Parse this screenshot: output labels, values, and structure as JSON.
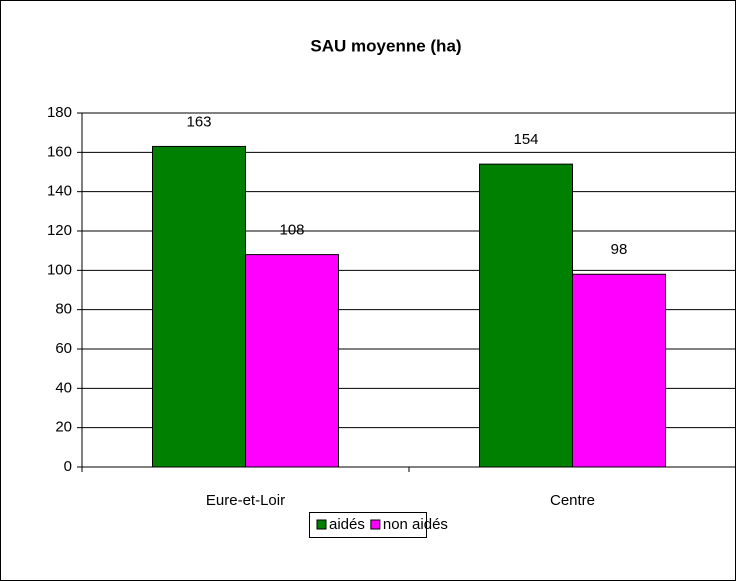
{
  "chart_data": {
    "type": "bar",
    "title": "SAU moyenne (ha)",
    "categories": [
      "Eure-et-Loir",
      "Centre"
    ],
    "series": [
      {
        "name": "aidés",
        "color": "#008000",
        "values": [
          163,
          154
        ]
      },
      {
        "name": "non aidés",
        "color": "#ff00ff",
        "values": [
          108,
          98
        ]
      }
    ],
    "ylim": [
      0,
      180
    ],
    "yticks": [
      0,
      20,
      40,
      60,
      80,
      100,
      120,
      140,
      160,
      180
    ],
    "grid": true,
    "legend": "bottom"
  }
}
